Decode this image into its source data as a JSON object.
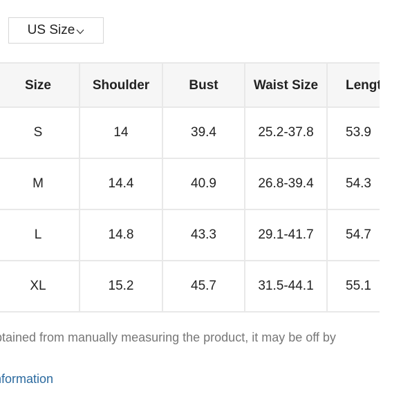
{
  "size_selector": {
    "label": "US Size",
    "chevron_icon": "chevron-down-icon"
  },
  "size_table": {
    "headers": [
      {
        "key": "size",
        "label": "Size"
      },
      {
        "key": "shoulder",
        "label": "Shoulder"
      },
      {
        "key": "bust",
        "label": "Bust"
      },
      {
        "key": "waist_size",
        "label": "Waist Size"
      },
      {
        "key": "length",
        "label": "Length"
      }
    ],
    "rows": [
      {
        "size": "S",
        "shoulder": "14",
        "bust": "39.4",
        "waist_size": "25.2-37.8",
        "length": "53.9"
      },
      {
        "size": "M",
        "shoulder": "14.4",
        "bust": "40.9",
        "waist_size": "26.8-39.4",
        "length": "54.3"
      },
      {
        "size": "L",
        "shoulder": "14.8",
        "bust": "43.3",
        "waist_size": "29.1-41.7",
        "length": "54.7"
      },
      {
        "size": "XL",
        "shoulder": "15.2",
        "bust": "45.7",
        "waist_size": "31.5-44.1",
        "length": "55.1"
      }
    ]
  },
  "footer": {
    "note": "btained from manually measuring the product, it may be off by",
    "link_text": "nformation",
    "link_color": "#2b6a9f"
  }
}
